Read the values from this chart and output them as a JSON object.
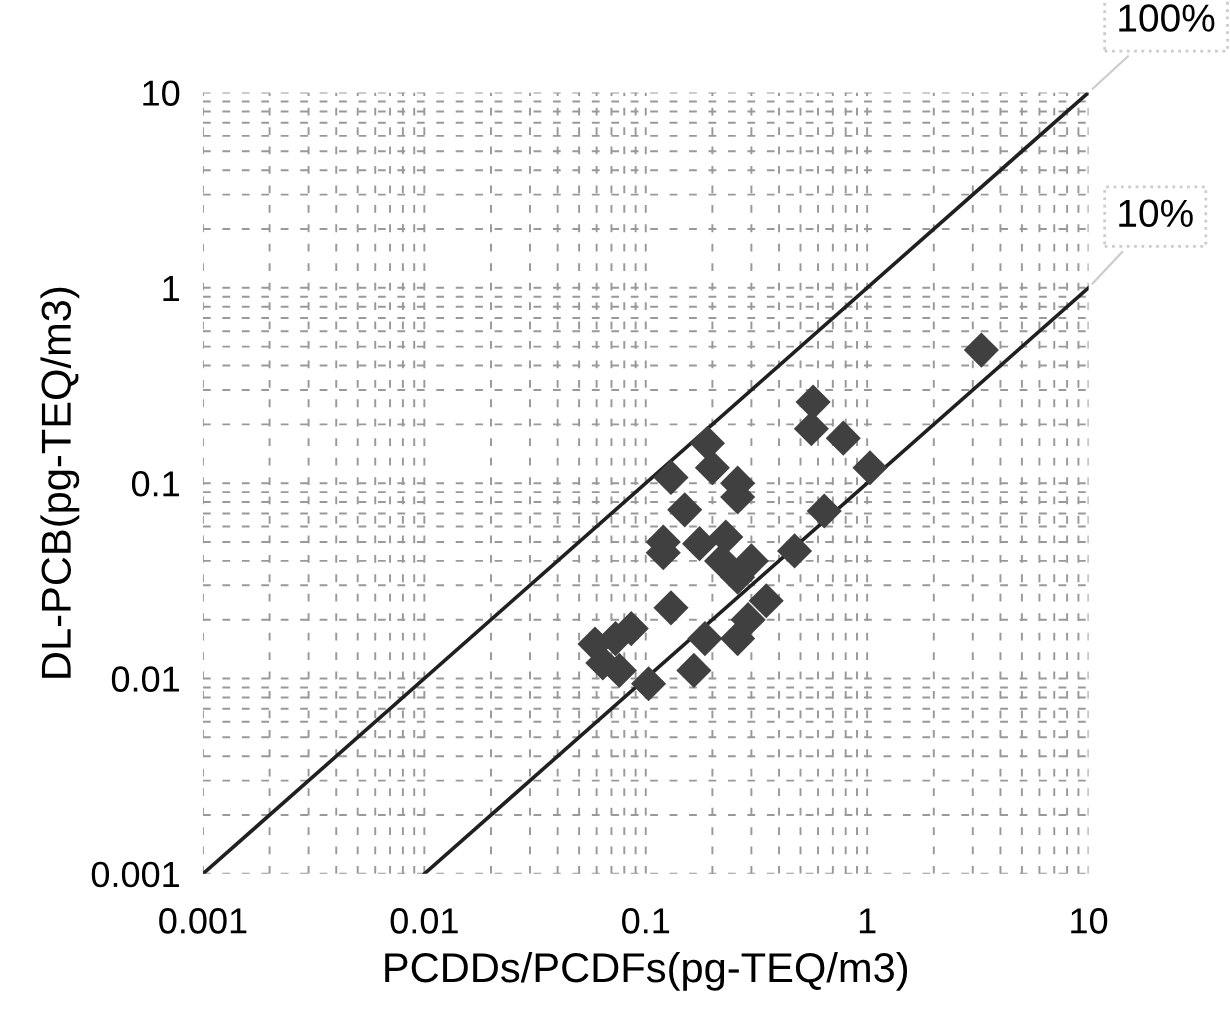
{
  "chart_data": {
    "type": "scatter",
    "xlabel": "PCDDs/PCDFs(pg-TEQ/m3)",
    "ylabel": "DL-PCB(pg-TEQ/m3)",
    "log": "xy",
    "xlim": [
      0.001,
      10
    ],
    "ylim": [
      0.001,
      10
    ],
    "xticks": [
      0.001,
      0.01,
      0.1,
      1,
      10
    ],
    "yticks": [
      0.001,
      0.01,
      0.1,
      1,
      10
    ],
    "grid": true,
    "series": [
      {
        "marker": "diamond",
        "color": "#404040",
        "x": [
          3.28,
          0.57,
          0.56,
          0.78,
          1.03,
          0.64,
          0.47,
          0.19,
          0.2,
          0.13,
          0.15,
          0.26,
          0.26,
          0.12,
          0.12,
          0.175,
          0.23,
          0.22,
          0.3,
          0.26,
          0.13,
          0.35,
          0.29,
          0.26,
          0.086,
          0.073,
          0.059,
          0.064,
          0.076,
          0.185,
          0.165,
          0.103
        ],
        "values": [
          0.48,
          0.26,
          0.19,
          0.17,
          0.12,
          0.072,
          0.045,
          0.16,
          0.12,
          0.107,
          0.073,
          0.1,
          0.085,
          0.05,
          0.044,
          0.049,
          0.053,
          0.04,
          0.04,
          0.033,
          0.023,
          0.025,
          0.02,
          0.016,
          0.018,
          0.016,
          0.015,
          0.012,
          0.011,
          0.016,
          0.011,
          0.0094
        ]
      },
      {
        "type": "line",
        "marker": "none",
        "color": "#202020",
        "x": [
          0.001,
          10
        ],
        "values": [
          0.001,
          10
        ]
      },
      {
        "type": "line",
        "marker": "none",
        "color": "#202020",
        "x": [
          0.01,
          10
        ],
        "values": [
          0.001,
          1
        ]
      }
    ],
    "annotations": [
      {
        "text": "100%",
        "x": 10,
        "y": 10
      },
      {
        "text": "10%",
        "x": 10,
        "y": 1
      }
    ]
  }
}
